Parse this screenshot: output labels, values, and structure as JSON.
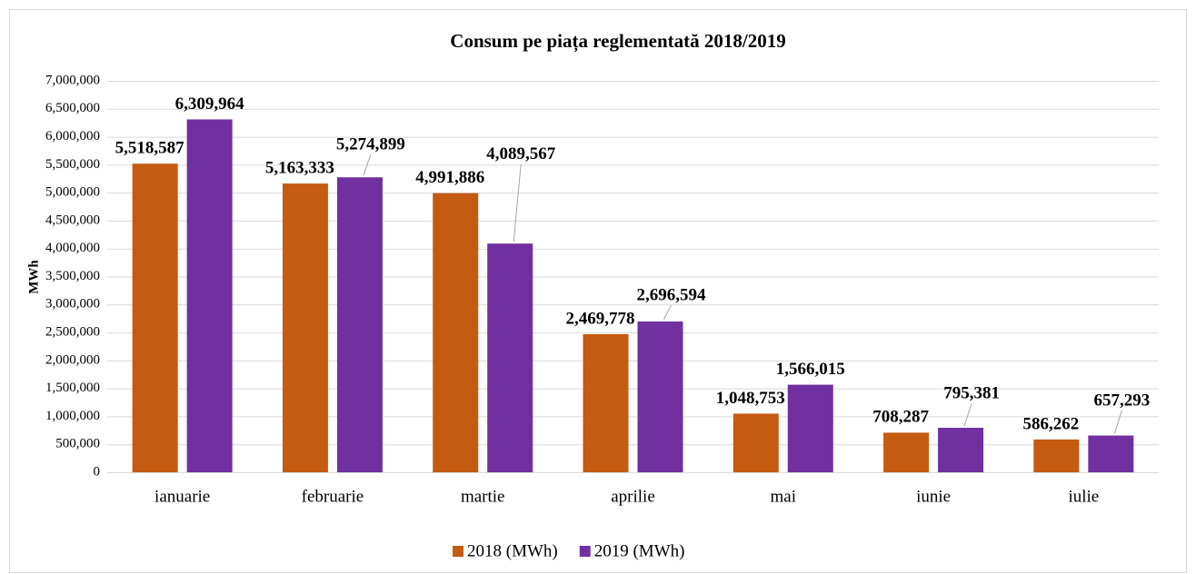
{
  "chart_data": {
    "type": "bar",
    "title": "Consum pe piața reglementată 2018/2019",
    "y_label": "MWh",
    "categories": [
      "ianuarie",
      "februarie",
      "martie",
      "aprilie",
      "mai",
      "iunie",
      "iulie"
    ],
    "series": [
      {
        "name": "2018 (MWh)",
        "color": "#c55a11",
        "values": [
          5518587,
          5163333,
          4991886,
          2469778,
          1048753,
          708287,
          586262
        ],
        "value_labels": [
          "5,518,587",
          "5,163,333",
          "4,991,886",
          "2,469,778",
          "1,048,753",
          "708,287",
          "586,262"
        ]
      },
      {
        "name": "2019 (MWh)",
        "color": "#7030a0",
        "values": [
          6309964,
          5274899,
          4089567,
          2696594,
          1566015,
          795381,
          657293
        ],
        "value_labels": [
          "6,309,964",
          "5,274,899",
          "4,089,567",
          "2,696,594",
          "1,566,015",
          "795,381",
          "657,293"
        ]
      }
    ],
    "ylim": [
      0,
      7000000
    ],
    "yticks": [
      0,
      {
        "value": 500000,
        "label": "500,000"
      },
      {
        "value": 1000000,
        "label": "1,000,000"
      },
      {
        "value": 1500000,
        "label": "1,500,000"
      },
      {
        "value": 2000000,
        "label": "2,000,000"
      },
      {
        "value": 2500000,
        "label": "2,500,000"
      },
      {
        "value": 3000000,
        "label": "3,000,000"
      },
      {
        "value": 3500000,
        "label": "3,500,000"
      },
      {
        "value": 4000000,
        "label": "4,000,000"
      },
      {
        "value": 4500000,
        "label": "4,500,000"
      },
      {
        "value": 5000000,
        "label": "5,000,000"
      },
      {
        "value": 5500000,
        "label": "5,500,000"
      },
      {
        "value": 6000000,
        "label": "6,000,000"
      },
      {
        "value": 6500000,
        "label": "6,500,000"
      },
      {
        "value": 7000000,
        "label": "7,000,000"
      }
    ],
    "grid": true,
    "legend": "bottom"
  }
}
